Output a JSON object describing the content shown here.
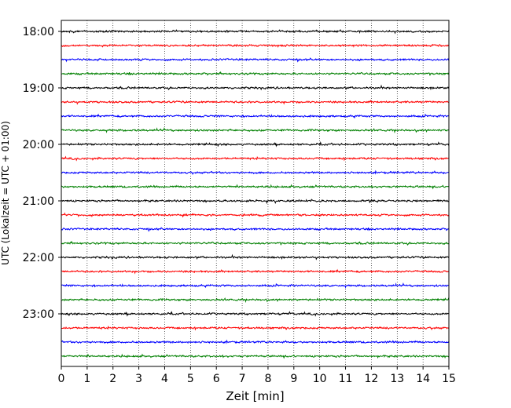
{
  "chart_data": {
    "type": "line",
    "title": "",
    "xlabel": "Zeit  [min]",
    "ylabel": "UTC (Lokalzeit = UTC + 01:00)",
    "xlim": [
      0,
      15
    ],
    "x_ticks": [
      "0",
      "1",
      "2",
      "3",
      "4",
      "5",
      "6",
      "7",
      "8",
      "9",
      "10",
      "11",
      "12",
      "13",
      "14",
      "15"
    ],
    "y_ticks": [
      {
        "label": "18:00",
        "trace": 0
      },
      {
        "label": "19:00",
        "trace": 4
      },
      {
        "label": "20:00",
        "trace": 8
      },
      {
        "label": "21:00",
        "trace": 12
      },
      {
        "label": "22:00",
        "trace": 16
      },
      {
        "label": "23:00",
        "trace": 20
      }
    ],
    "grid": "vertical-dotted",
    "trace_count": 24,
    "trace_interval_minutes": 15,
    "start_time": "18:00",
    "colors": [
      "#000000",
      "#ff0000",
      "#0000ff",
      "#008000"
    ]
  }
}
